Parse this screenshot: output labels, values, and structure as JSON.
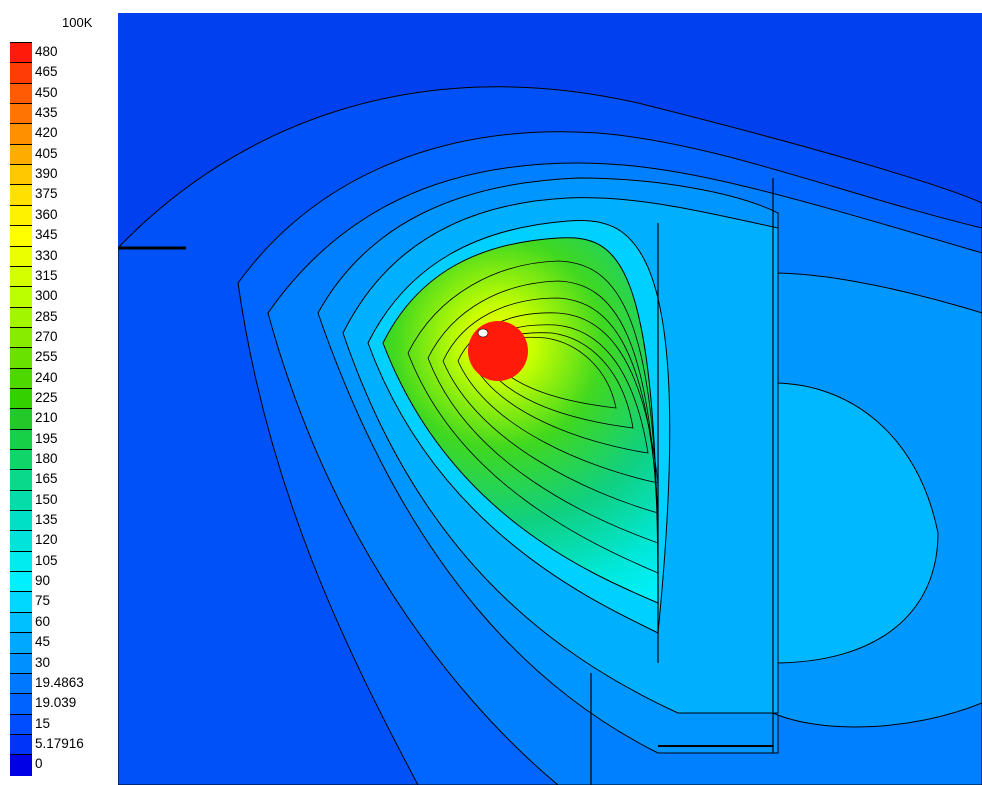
{
  "chart_data": {
    "type": "heatmap",
    "title": "",
    "xlabel": "",
    "ylabel": "",
    "grid": false,
    "legend": {
      "placement": "left",
      "unit_label": "100K",
      "levels": [
        "480",
        "465",
        "450",
        "435",
        "420",
        "405",
        "390",
        "375",
        "360",
        "345",
        "330",
        "315",
        "300",
        "285",
        "270",
        "255",
        "240",
        "225",
        "210",
        "195",
        "180",
        "165",
        "150",
        "135",
        "120",
        "105",
        "90",
        "75",
        "60",
        "45",
        "30",
        "19.4863",
        "19.039",
        "15",
        "5.17916",
        "0"
      ],
      "colors": [
        "#ff1a0a",
        "#ff3c06",
        "#ff5a04",
        "#ff7402",
        "#ff9000",
        "#ffac00",
        "#ffc800",
        "#ffe000",
        "#fff200",
        "#ffff00",
        "#ecff00",
        "#d4ff00",
        "#bcff00",
        "#a2f600",
        "#86ec00",
        "#6ae200",
        "#4ed800",
        "#34d000",
        "#24c828",
        "#18d048",
        "#10d66a",
        "#08da8a",
        "#04dcaa",
        "#00e0c6",
        "#00e4dc",
        "#00ecf0",
        "#00f0ff",
        "#00d8ff",
        "#00c0ff",
        "#00a8ff",
        "#0090ff",
        "#0078ff",
        "#0062ff",
        "#004cff",
        "#0034f8",
        "#0000e6"
      ]
    },
    "field": {
      "source_value": 480,
      "outer_value": 5.17916
    }
  }
}
